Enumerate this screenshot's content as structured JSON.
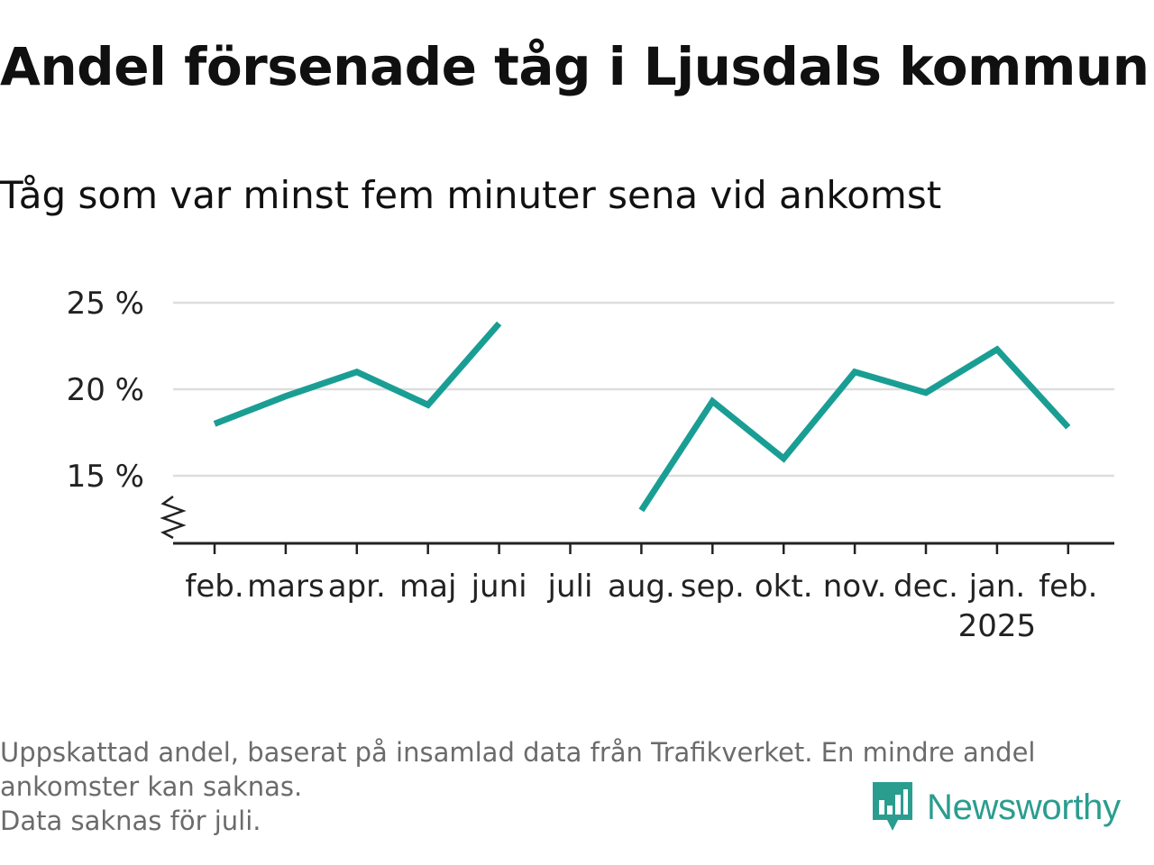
{
  "title": "Andel försenade tåg i Ljusdals kommun",
  "subtitle": "Tåg som var minst fem minuter sena vid ankomst",
  "footnote": [
    "Uppskattad andel, baserat på insamlad data från Trafikverket. En mindre andel",
    "ankomster kan saknas.",
    "Data saknas för juli."
  ],
  "brand": {
    "name": "Newsworthy",
    "color": "#2a9d8f",
    "icon": "newsworthy-logo-icon"
  },
  "colors": {
    "line": "#1a9e94",
    "grid": "#dedede",
    "axis": "#222222",
    "text": "#222222"
  },
  "chart_data": {
    "type": "line",
    "categories": [
      "feb.",
      "mars",
      "apr.",
      "maj",
      "juni",
      "juli",
      "aug.",
      "sep.",
      "okt.",
      "nov.",
      "dec.",
      "jan.",
      "feb."
    ],
    "year_labels": [
      "",
      "",
      "",
      "",
      "",
      "",
      "",
      "",
      "",
      "",
      "",
      "2025",
      ""
    ],
    "series": [
      {
        "values": [
          18.0,
          19.6,
          21.0,
          19.1,
          23.8,
          null,
          13.0,
          19.3,
          16.0,
          21.0,
          19.8,
          22.3,
          17.8
        ]
      }
    ],
    "yticks": [
      15,
      20,
      25
    ],
    "ytick_labels": [
      "15 %",
      "20 %",
      "25 %"
    ],
    "ylim": [
      11,
      25
    ],
    "y_axis_break": true,
    "grid": true,
    "xlabel": "",
    "ylabel": ""
  }
}
